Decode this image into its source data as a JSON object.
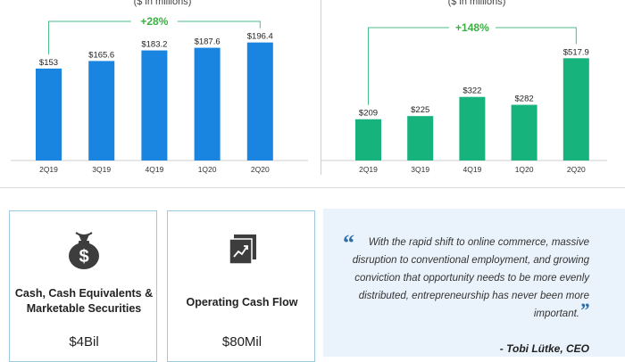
{
  "chart_data": [
    {
      "type": "bar",
      "unit_label": "($ in millions)",
      "categories": [
        "2Q19",
        "3Q19",
        "4Q19",
        "1Q20",
        "2Q20"
      ],
      "values": [
        153,
        165.6,
        183.2,
        187.6,
        196.4
      ],
      "value_labels": [
        "$153",
        "$165.6",
        "$183.2",
        "$187.6",
        "$196.4"
      ],
      "growth_label": "+28%",
      "color": "#1a85e0",
      "ylim": [
        0,
        230
      ]
    },
    {
      "type": "bar",
      "unit_label": "($ in millions)",
      "categories": [
        "2Q19",
        "3Q19",
        "4Q19",
        "1Q20",
        "2Q20"
      ],
      "values": [
        209,
        225,
        322,
        282,
        517.9
      ],
      "value_labels": [
        "$209",
        "$225",
        "$322",
        "$282",
        "$517.9"
      ],
      "growth_label": "+148%",
      "color": "#16b37c",
      "ylim": [
        0,
        700
      ]
    }
  ],
  "colors": {
    "growth": "#3cb043",
    "bracket": "#4bbd8a",
    "card_border": "#9ec9df",
    "quote_bg": "#eaf3fb"
  },
  "cards": [
    {
      "icon": "money-bag-icon",
      "label": "Cash, Cash Equivalents & Marketable Securities",
      "value": "$4Bil"
    },
    {
      "icon": "trend-chart-icon",
      "label": "Operating Cash Flow",
      "value": "$80Mil"
    }
  ],
  "quote": {
    "text": "With the rapid shift to online commerce, massive disruption to conventional employment, and growing conviction that opportunity needs to be more evenly distributed, entrepreneurship has never been more important.",
    "author": "- Tobi Lütke, CEO"
  }
}
